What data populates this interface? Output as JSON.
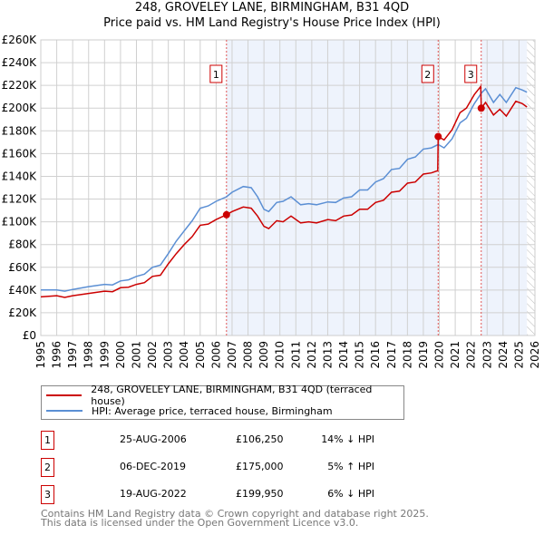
{
  "chart_data": {
    "type": "line",
    "title": "248, GROVELEY LANE, BIRMINGHAM, B31 4QD",
    "subtitle": "Price paid vs. HM Land Registry's House Price Index (HPI)",
    "xlim": [
      1995,
      2026
    ],
    "ylim": [
      0,
      260000
    ],
    "yticks": [
      0,
      20000,
      40000,
      60000,
      80000,
      100000,
      120000,
      140000,
      160000,
      180000,
      200000,
      220000,
      240000,
      260000
    ],
    "ytick_labels": [
      "£0",
      "£20K",
      "£40K",
      "£60K",
      "£80K",
      "£100K",
      "£120K",
      "£140K",
      "£160K",
      "£180K",
      "£200K",
      "£220K",
      "£240K",
      "£260K"
    ],
    "xticks": [
      1995,
      1996,
      1997,
      1998,
      1999,
      2000,
      2001,
      2002,
      2003,
      2004,
      2005,
      2006,
      2007,
      2008,
      2009,
      2010,
      2011,
      2012,
      2013,
      2014,
      2015,
      2016,
      2017,
      2018,
      2019,
      2020,
      2021,
      2022,
      2023,
      2024,
      2025,
      2026
    ],
    "grid": true,
    "legend_placement": "below",
    "series": [
      {
        "name": "248, GROVELEY LANE, BIRMINGHAM, B31 4QD (terraced house)",
        "color": "#cc0000",
        "x": [
          1995,
          1996,
          1996.5,
          1997,
          1998,
          1999,
          1999.5,
          2000,
          2000.5,
          2001,
          2001.5,
          2002,
          2002.5,
          2003,
          2003.5,
          2004,
          2004.5,
          2005,
          2005.5,
          2006,
          2006.65,
          2007,
          2007.7,
          2008.2,
          2008.6,
          2009,
          2009.3,
          2009.8,
          2010.2,
          2010.7,
          2011.3,
          2011.8,
          2012.3,
          2013,
          2013.5,
          2014,
          2014.5,
          2015,
          2015.5,
          2016,
          2016.5,
          2017,
          2017.5,
          2018,
          2018.5,
          2019,
          2019.5,
          2019.9,
          2019.93,
          2020.3,
          2020.8,
          2021.3,
          2021.7,
          2022.2,
          2022.6,
          2022.63,
          2022.9,
          2023.4,
          2023.8,
          2024.2,
          2024.8,
          2025.2,
          2025.5
        ],
        "y": [
          34000,
          35000,
          33500,
          35000,
          37000,
          39000,
          38500,
          42000,
          42500,
          45000,
          46500,
          52000,
          53000,
          63000,
          72000,
          80000,
          87000,
          97000,
          98000,
          102000,
          106250,
          109000,
          113000,
          112000,
          105000,
          96000,
          94000,
          101000,
          100000,
          105000,
          99000,
          100000,
          99000,
          102000,
          101000,
          105000,
          106000,
          111000,
          111000,
          117000,
          119000,
          126000,
          127000,
          134000,
          135000,
          142000,
          143000,
          145000,
          175000,
          172000,
          181000,
          196000,
          200000,
          212000,
          219000,
          199950,
          205000,
          194000,
          199000,
          193000,
          206000,
          204000,
          201000
        ]
      },
      {
        "name": "HPI: Average price, terraced house, Birmingham",
        "color": "#5b8fd4",
        "x": [
          1995,
          1996,
          1996.5,
          1997,
          1998,
          1999,
          1999.5,
          2000,
          2000.5,
          2001,
          2001.5,
          2002,
          2002.5,
          2003,
          2003.5,
          2004,
          2004.5,
          2005,
          2005.5,
          2006,
          2006.65,
          2007,
          2007.7,
          2008.2,
          2008.6,
          2009,
          2009.3,
          2009.8,
          2010.2,
          2010.7,
          2011.3,
          2011.8,
          2012.3,
          2013,
          2013.5,
          2014,
          2014.5,
          2015,
          2015.5,
          2016,
          2016.5,
          2017,
          2017.5,
          2018,
          2018.5,
          2019,
          2019.5,
          2019.93,
          2020.3,
          2020.8,
          2021.3,
          2021.7,
          2022.2,
          2022.63,
          2022.9,
          2023.4,
          2023.8,
          2024.2,
          2024.8,
          2025.2,
          2025.5
        ],
        "y": [
          40000,
          40000,
          39000,
          40500,
          43000,
          45000,
          44500,
          48000,
          49000,
          52000,
          54000,
          60000,
          62000,
          72000,
          83000,
          92000,
          101000,
          112000,
          114000,
          118000,
          122000,
          126000,
          131000,
          130000,
          122000,
          111000,
          109000,
          117000,
          118000,
          122000,
          115000,
          116000,
          115000,
          117500,
          117000,
          121000,
          122000,
          128000,
          128000,
          135000,
          138000,
          146000,
          147000,
          155000,
          157000,
          164000,
          165000,
          168000,
          165000,
          173000,
          187000,
          191000,
          204000,
          213000,
          217000,
          205000,
          212000,
          205000,
          218000,
          216000,
          214000
        ]
      }
    ],
    "sales": [
      {
        "label": "1",
        "x": 2006.65,
        "y": 106250
      },
      {
        "label": "2",
        "x": 2019.93,
        "y": 175000
      },
      {
        "label": "3",
        "x": 2022.63,
        "y": 199950
      }
    ],
    "shaded_ranges": [
      [
        2006.65,
        2019.93
      ],
      [
        2022.63,
        2025.5
      ]
    ],
    "hatched_from": 2025.5
  },
  "legend": {
    "property": "248, GROVELEY LANE, BIRMINGHAM, B31 4QD (terraced house)",
    "hpi": "HPI: Average price, terraced house, Birmingham"
  },
  "transactions": [
    {
      "num": "1",
      "date": "25-AUG-2006",
      "price": "£106,250",
      "hpi": "14% ↓ HPI"
    },
    {
      "num": "2",
      "date": "06-DEC-2019",
      "price": "£175,000",
      "hpi": "5% ↑ HPI"
    },
    {
      "num": "3",
      "date": "19-AUG-2022",
      "price": "£199,950",
      "hpi": "6% ↓ HPI"
    }
  ],
  "footer": {
    "line1": "Contains HM Land Registry data © Crown copyright and database right 2025.",
    "line2": "This data is licensed under the Open Government Licence v3.0."
  }
}
